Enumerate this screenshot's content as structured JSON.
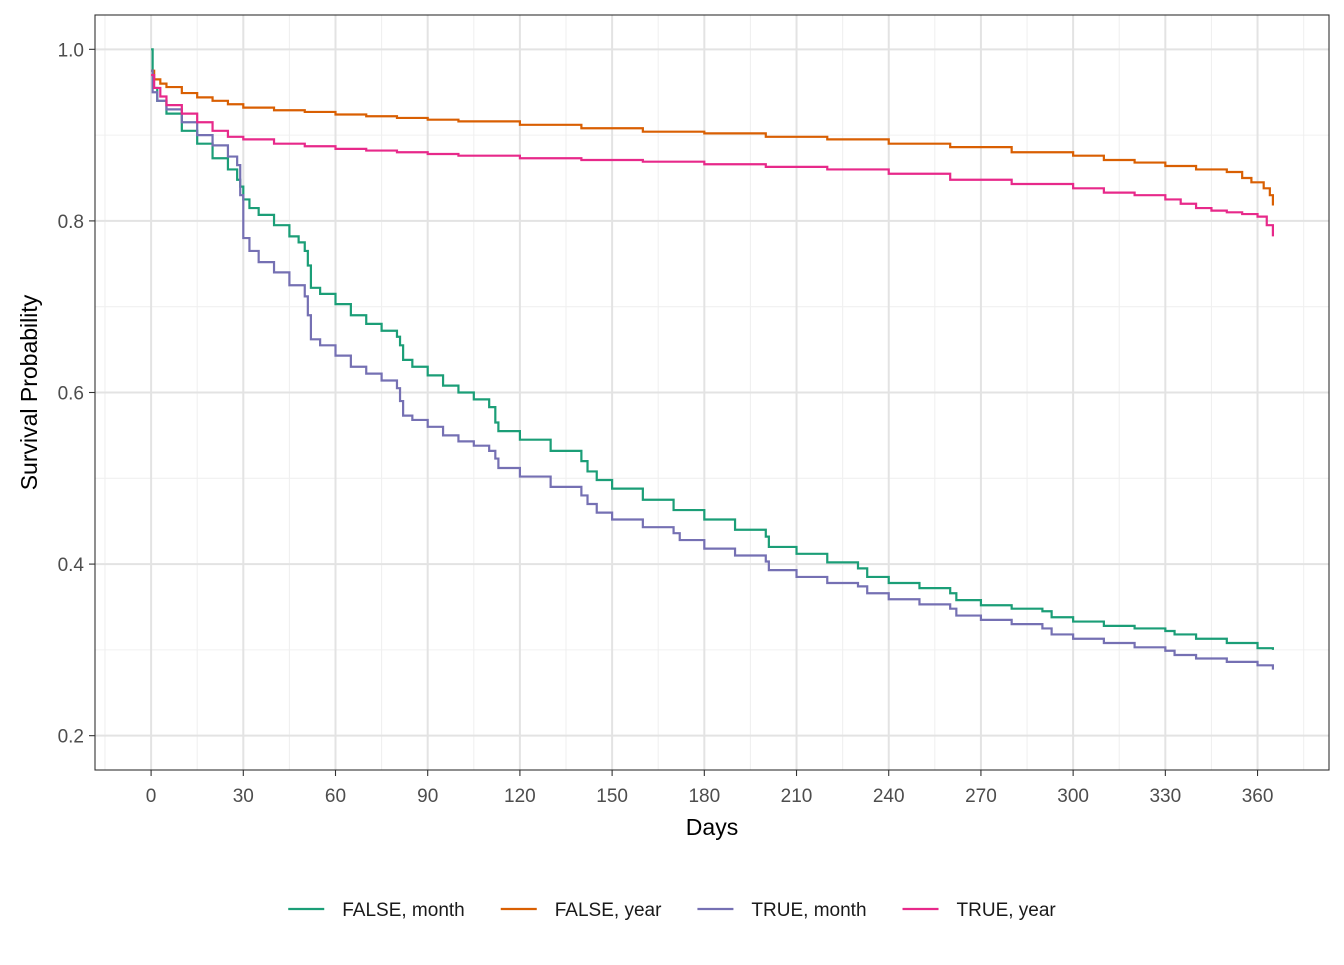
{
  "chart_data": {
    "type": "line",
    "step": true,
    "xlabel": "Days",
    "ylabel": "Survival Probability",
    "xlim": [
      -18.25,
      383.25
    ],
    "ylim": [
      0.16,
      1.04
    ],
    "xticks": [
      0,
      30,
      60,
      90,
      120,
      150,
      180,
      210,
      240,
      270,
      300,
      330,
      360
    ],
    "xtick_labels": [
      "0",
      "30",
      "60",
      "90",
      "120",
      "150",
      "180",
      "210",
      "240",
      "270",
      "300",
      "330",
      "360"
    ],
    "yticks": [
      0.2,
      0.4,
      0.6,
      0.8,
      1.0
    ],
    "ytick_labels": [
      "0.2",
      "0.4",
      "0.6",
      "0.8",
      "1.0"
    ],
    "grid": true,
    "legend_position": "bottom",
    "series": [
      {
        "name": "FALSE, month",
        "color": "#1b9e77",
        "x": [
          0,
          0.5,
          2,
          5,
          10,
          15,
          20,
          25,
          28,
          29,
          30,
          32,
          35,
          40,
          45,
          48,
          50,
          51,
          52,
          55,
          60,
          65,
          70,
          75,
          80,
          81,
          82,
          85,
          90,
          95,
          100,
          105,
          110,
          112,
          113,
          120,
          130,
          140,
          142,
          145,
          150,
          160,
          170,
          180,
          190,
          200,
          201,
          210,
          220,
          230,
          233,
          240,
          250,
          260,
          262,
          270,
          280,
          290,
          293,
          300,
          310,
          320,
          330,
          333,
          340,
          350,
          360,
          365
        ],
        "y": [
          1.0,
          0.955,
          0.94,
          0.925,
          0.905,
          0.89,
          0.873,
          0.86,
          0.848,
          0.84,
          0.825,
          0.815,
          0.807,
          0.795,
          0.782,
          0.775,
          0.765,
          0.748,
          0.722,
          0.715,
          0.703,
          0.69,
          0.68,
          0.672,
          0.665,
          0.655,
          0.638,
          0.63,
          0.62,
          0.608,
          0.6,
          0.592,
          0.583,
          0.565,
          0.555,
          0.545,
          0.532,
          0.52,
          0.508,
          0.498,
          0.488,
          0.475,
          0.463,
          0.452,
          0.44,
          0.432,
          0.42,
          0.412,
          0.402,
          0.395,
          0.385,
          0.378,
          0.372,
          0.366,
          0.358,
          0.352,
          0.348,
          0.345,
          0.338,
          0.333,
          0.328,
          0.325,
          0.322,
          0.318,
          0.313,
          0.308,
          0.302,
          0.3
        ]
      },
      {
        "name": "FALSE, year",
        "color": "#d95f02",
        "x": [
          0,
          1,
          3,
          5,
          10,
          15,
          20,
          25,
          30,
          40,
          50,
          60,
          70,
          80,
          90,
          100,
          120,
          140,
          160,
          180,
          200,
          220,
          240,
          260,
          280,
          300,
          310,
          320,
          330,
          340,
          350,
          355,
          358,
          362,
          364,
          365
        ],
        "y": [
          0.975,
          0.965,
          0.96,
          0.956,
          0.949,
          0.944,
          0.94,
          0.936,
          0.932,
          0.929,
          0.927,
          0.924,
          0.922,
          0.92,
          0.918,
          0.916,
          0.912,
          0.908,
          0.904,
          0.902,
          0.898,
          0.895,
          0.89,
          0.886,
          0.88,
          0.876,
          0.871,
          0.868,
          0.864,
          0.86,
          0.857,
          0.85,
          0.845,
          0.838,
          0.83,
          0.818
        ]
      },
      {
        "name": "TRUE, month",
        "color": "#7570b3",
        "x": [
          0,
          0.5,
          2,
          5,
          10,
          15,
          20,
          25,
          28,
          29,
          30,
          32,
          35,
          40,
          45,
          50,
          51,
          52,
          55,
          60,
          65,
          70,
          75,
          80,
          81,
          82,
          85,
          90,
          95,
          100,
          105,
          110,
          112,
          113,
          120,
          130,
          140,
          142,
          145,
          150,
          160,
          170,
          172,
          180,
          190,
          200,
          201,
          210,
          220,
          230,
          233,
          240,
          250,
          260,
          262,
          270,
          280,
          290,
          293,
          300,
          310,
          320,
          330,
          333,
          340,
          350,
          360,
          365
        ],
        "y": [
          0.975,
          0.95,
          0.94,
          0.93,
          0.915,
          0.9,
          0.888,
          0.875,
          0.865,
          0.83,
          0.78,
          0.765,
          0.752,
          0.74,
          0.725,
          0.712,
          0.69,
          0.662,
          0.655,
          0.643,
          0.63,
          0.622,
          0.614,
          0.605,
          0.59,
          0.573,
          0.568,
          0.56,
          0.55,
          0.543,
          0.538,
          0.532,
          0.523,
          0.512,
          0.502,
          0.49,
          0.48,
          0.47,
          0.46,
          0.452,
          0.443,
          0.436,
          0.428,
          0.418,
          0.41,
          0.403,
          0.393,
          0.385,
          0.378,
          0.374,
          0.366,
          0.359,
          0.353,
          0.348,
          0.34,
          0.335,
          0.33,
          0.325,
          0.318,
          0.313,
          0.308,
          0.303,
          0.299,
          0.294,
          0.29,
          0.286,
          0.282,
          0.277
        ]
      },
      {
        "name": "TRUE, year",
        "color": "#e7298a",
        "x": [
          0,
          1,
          3,
          5,
          10,
          15,
          20,
          25,
          30,
          40,
          50,
          60,
          70,
          80,
          90,
          100,
          120,
          140,
          160,
          180,
          200,
          220,
          240,
          260,
          280,
          300,
          310,
          320,
          330,
          335,
          340,
          345,
          350,
          355,
          360,
          363,
          365
        ],
        "y": [
          0.97,
          0.955,
          0.945,
          0.935,
          0.925,
          0.915,
          0.905,
          0.898,
          0.895,
          0.89,
          0.887,
          0.884,
          0.882,
          0.88,
          0.878,
          0.876,
          0.873,
          0.871,
          0.869,
          0.866,
          0.863,
          0.86,
          0.855,
          0.848,
          0.843,
          0.838,
          0.833,
          0.83,
          0.825,
          0.82,
          0.815,
          0.812,
          0.81,
          0.808,
          0.805,
          0.795,
          0.782
        ]
      }
    ]
  }
}
